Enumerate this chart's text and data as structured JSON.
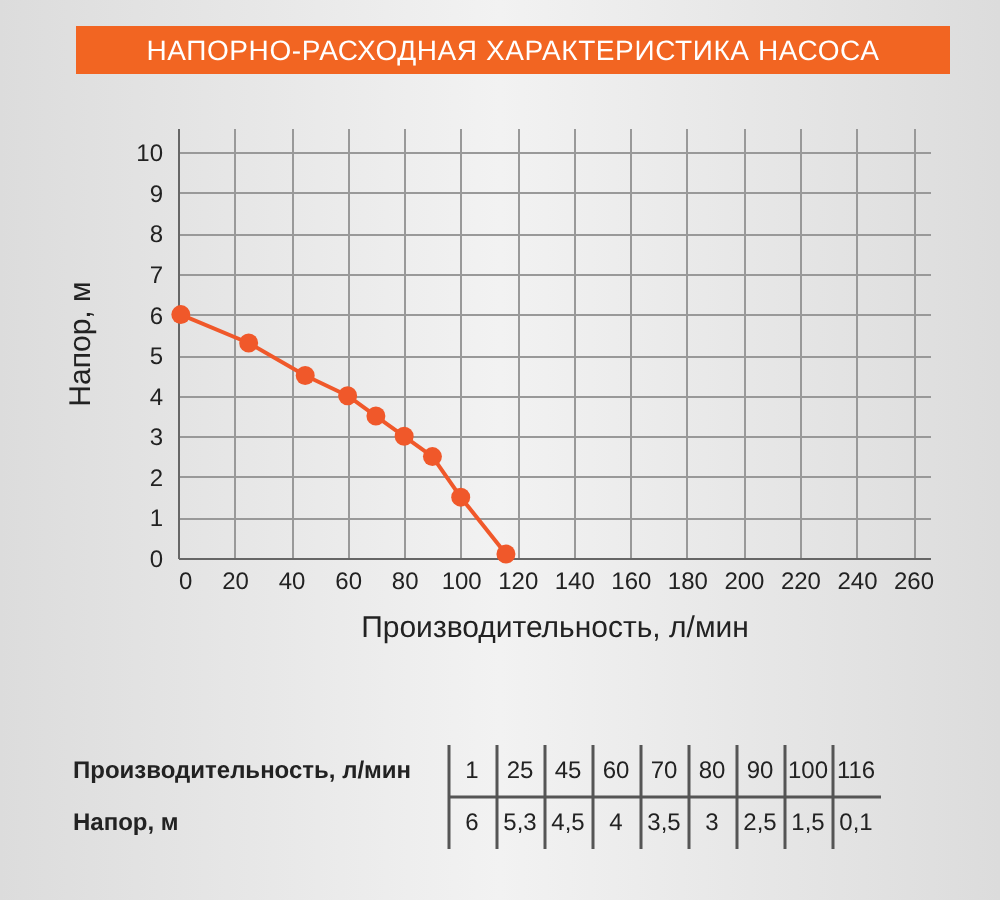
{
  "chart_data": [
    {
      "type": "line",
      "title": "НАПОРНО-РАСХОДНАЯ ХАРАКТЕРИСТИКА НАСОСА",
      "xlabel": "Производительность, л/мин",
      "ylabel": "Напор, м",
      "x": [
        1,
        25,
        45,
        60,
        70,
        80,
        90,
        100,
        116
      ],
      "series": [
        {
          "color": "#f0582a",
          "values": [
            6,
            5.3,
            4.5,
            4,
            3.5,
            3,
            2.5,
            1.5,
            0.1
          ]
        }
      ],
      "xlim": [
        0,
        266
      ],
      "xticks": [
        0,
        20,
        40,
        60,
        80,
        100,
        120,
        140,
        160,
        180,
        200,
        220,
        240,
        260
      ],
      "ylim": [
        0,
        10.6
      ],
      "yticks": [
        0,
        1,
        2,
        3,
        4,
        5,
        6,
        7,
        8,
        9,
        10
      ],
      "grid": true,
      "marker": "circle",
      "line_style": "solid"
    },
    {
      "type": "heatmap",
      "categories": [
        null,
        null,
        null,
        null,
        null,
        null,
        null,
        null,
        null
      ],
      "y_categories": [
        "Производительность, л/мин",
        "Напор, м"
      ],
      "cells": [
        [
          1,
          25,
          45,
          60,
          70,
          80,
          90,
          100,
          116
        ],
        [
          6,
          5.3,
          4.5,
          4,
          3.5,
          3,
          2.5,
          1.5,
          0.1
        ]
      ],
      "cell_labels": [
        [
          "1",
          "25",
          "45",
          "60",
          "70",
          "80",
          "90",
          "100",
          "116"
        ],
        [
          "6",
          "5,3",
          "4,5",
          "4",
          "3,5",
          "3",
          "2,5",
          "1,5",
          "0,1"
        ]
      ]
    }
  ]
}
